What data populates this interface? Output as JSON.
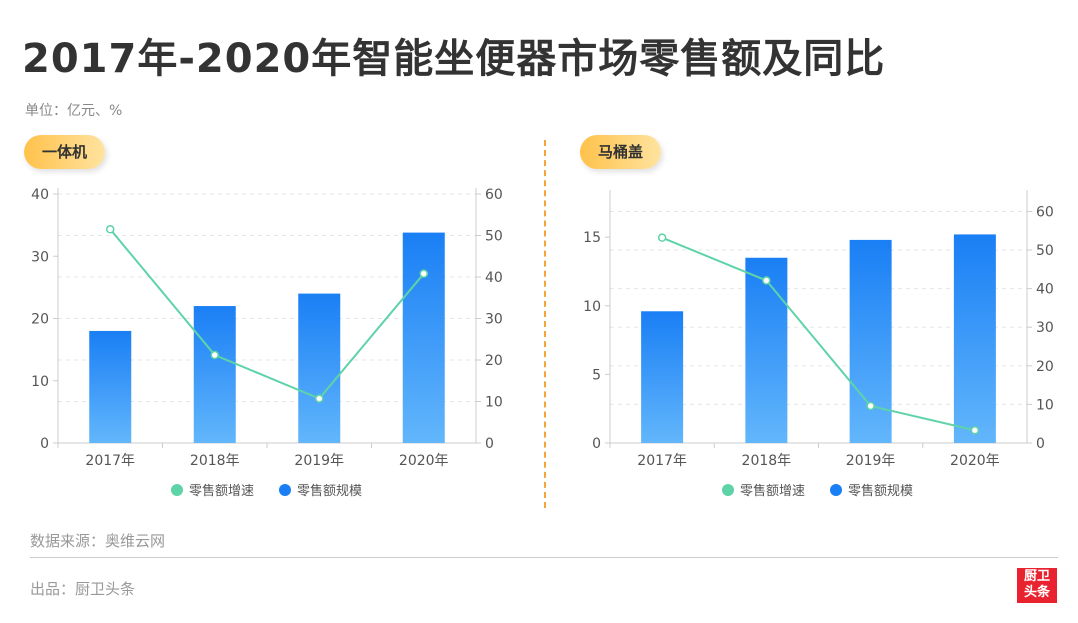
{
  "title": "2017年-2020年智能坐便器市场零售额及同比",
  "unit": "单位：亿元、%",
  "source": "数据来源：奥维云网",
  "producer": "出品：厨卫头条",
  "logo": {
    "line1": "厨卫",
    "line2": "头条"
  },
  "colors": {
    "bar_top": "#1a7ff5",
    "bar_bottom": "#62b6fb",
    "line": "#5fd3a8",
    "accent": "#f5a43a"
  },
  "chart_data": [
    {
      "type": "bar",
      "title": "一体机",
      "categories": [
        "2017年",
        "2018年",
        "2019年",
        "2020年"
      ],
      "series": [
        {
          "name": "零售额规模",
          "type": "bar",
          "axis": "left",
          "values": [
            18,
            22,
            24,
            33.8
          ]
        },
        {
          "name": "零售额增速",
          "type": "line",
          "axis": "right",
          "values": [
            51.5,
            21.2,
            10.7,
            40.8
          ]
        }
      ],
      "ylim_left": [
        0,
        40
      ],
      "yticks_left": [
        0,
        10,
        20,
        30,
        40
      ],
      "ylim_right": [
        0,
        60
      ],
      "yticks_right": [
        0,
        10,
        20,
        30,
        40,
        50,
        60
      ],
      "legend": [
        "零售额增速",
        "零售额规模"
      ],
      "legend_position": "bottom",
      "grid": true
    },
    {
      "type": "bar",
      "title": "马桶盖",
      "categories": [
        "2017年",
        "2018年",
        "2019年",
        "2020年"
      ],
      "series": [
        {
          "name": "零售额规模",
          "type": "bar",
          "axis": "left",
          "values": [
            9.6,
            13.5,
            14.8,
            15.2
          ]
        },
        {
          "name": "零售额增速",
          "type": "line",
          "axis": "right",
          "values": [
            53.2,
            42.1,
            9.6,
            3.3
          ]
        }
      ],
      "ylim_left": [
        0,
        18
      ],
      "yticks_left": [
        0,
        5,
        10,
        15
      ],
      "ylim_right": [
        0,
        64
      ],
      "yticks_right": [
        0,
        10,
        20,
        30,
        40,
        50,
        60
      ],
      "legend": [
        "零售额增速",
        "零售额规模"
      ],
      "legend_position": "bottom",
      "grid": true
    }
  ]
}
